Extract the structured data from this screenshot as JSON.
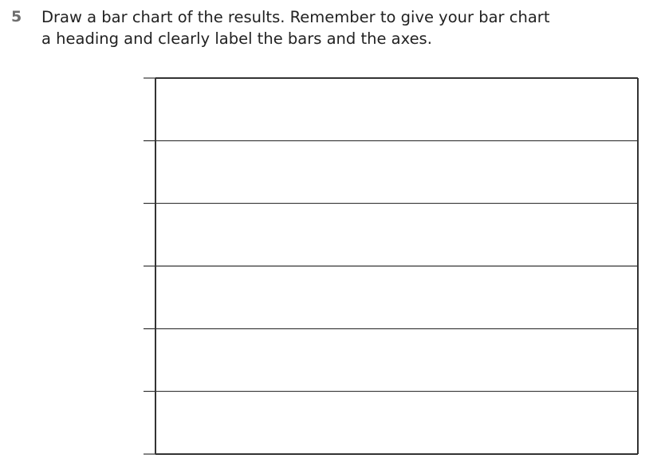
{
  "question": {
    "number": "5",
    "line1": "Draw a bar chart of the results. Remember to give your bar chart",
    "line2": "a heading and clearly label the bars and the axes."
  },
  "answer_grid": {
    "rows": 6,
    "line_color": "#333333"
  }
}
